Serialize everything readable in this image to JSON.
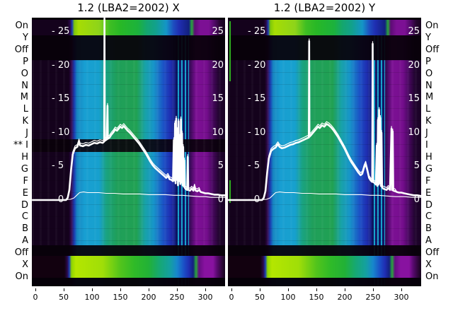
{
  "figure": {
    "kind": "station-test spectrogram with overlaid signal curves",
    "background": "#ffffff"
  },
  "row_labels_left": [
    "On",
    "Y",
    "Off",
    "P",
    "O",
    "N",
    "M",
    "L",
    "K",
    "J",
    "** I",
    "H",
    "G",
    "F",
    "E",
    "D",
    "C",
    "B",
    "A",
    "Off",
    "X",
    "On"
  ],
  "row_labels_right": [
    "On",
    "Y",
    "Off",
    "P",
    "O",
    "N",
    "M",
    "L",
    "K",
    "J",
    "I",
    "H",
    "G",
    "F",
    "E",
    "D",
    "C",
    "B",
    "A",
    "Off",
    "X",
    "On"
  ],
  "palette": {
    "curve": "#ffffff",
    "dark_row": "#0d0112",
    "cyan": "#189fd2",
    "teal": "#1aa382",
    "green": "#21a153",
    "yellow_green": "#a6dc04",
    "yellow_green_bright": "#b4e600",
    "blue": "#1f2eb2",
    "purple": "#7c1094",
    "stripe_dark": "#0e1464",
    "stripe_cyan": "#17a3cc",
    "text": "#000000"
  },
  "chart_data": {
    "type": "heatmap",
    "subtype": "spectrogram panels with white line overlays",
    "x_ticks": [
      0,
      50,
      100,
      150,
      200,
      250,
      300
    ],
    "x_range": [
      0,
      335
    ],
    "y_tick_values": [
      25,
      20,
      15,
      10,
      5,
      0
    ],
    "y_range": [
      0,
      27
    ],
    "grid": false,
    "legend": "none",
    "flagged_row": "** I (left axis of panel X)",
    "panels": [
      {
        "id": "X",
        "title": "1.2 (LBA2=2002) X",
        "has_dark_I_band": true,
        "curves": {
          "main": [
            [
              -6,
              0
            ],
            [
              54,
              0
            ],
            [
              57,
              0.3
            ],
            [
              60,
              1.5
            ],
            [
              63,
              4.5
            ],
            [
              66,
              6.8
            ],
            [
              70,
              7.7
            ],
            [
              74,
              7.9
            ],
            [
              77,
              8.7
            ],
            [
              79,
              8.1
            ],
            [
              84,
              8
            ],
            [
              89,
              8.2
            ],
            [
              94,
              8.1
            ],
            [
              99,
              8.3
            ],
            [
              104,
              8.5
            ],
            [
              109,
              8.4
            ],
            [
              114,
              8.6
            ],
            [
              119,
              8.5
            ],
            [
              121.5,
              8.7
            ],
            [
              122,
              27
            ],
            [
              122.6,
              8.8
            ],
            [
              126,
              9
            ],
            [
              127.4,
              14
            ],
            [
              128,
              9.1
            ],
            [
              131,
              9.3
            ],
            [
              134,
              9.7
            ],
            [
              138,
              10.1
            ],
            [
              141,
              10.5
            ],
            [
              144,
              10.3
            ],
            [
              147,
              10.6
            ],
            [
              150,
              10.9
            ],
            [
              153,
              10.7
            ],
            [
              156,
              11
            ],
            [
              159,
              10.7
            ],
            [
              163,
              10.3
            ],
            [
              167,
              10
            ],
            [
              171,
              9.6
            ],
            [
              175,
              9.2
            ],
            [
              179,
              8.8
            ],
            [
              183,
              8.4
            ],
            [
              187,
              7.9
            ],
            [
              191,
              7.4
            ],
            [
              195,
              6.9
            ],
            [
              199,
              6.3
            ],
            [
              203,
              5.7
            ],
            [
              207,
              5.2
            ],
            [
              211,
              4.8
            ],
            [
              215,
              4.5
            ],
            [
              219,
              4.2
            ],
            [
              223,
              3.9
            ],
            [
              227,
              3.6
            ],
            [
              231,
              3.3
            ],
            [
              234,
              3.6
            ],
            [
              237,
              3.1
            ],
            [
              240,
              3
            ],
            [
              243,
              2.8
            ],
            [
              244.5,
              8.9
            ],
            [
              245.5,
              2.9
            ],
            [
              246.6,
              11.4
            ],
            [
              247.6,
              2.5
            ],
            [
              248.7,
              12.1
            ],
            [
              249.7,
              3
            ],
            [
              250.8,
              10.4
            ],
            [
              251.8,
              2.2
            ],
            [
              252.9,
              11.7
            ],
            [
              253.9,
              2.8
            ],
            [
              255,
              9.4
            ],
            [
              256,
              2.4
            ],
            [
              257,
              12
            ],
            [
              258,
              2.6
            ],
            [
              259,
              9.9
            ],
            [
              260,
              2.2
            ],
            [
              261,
              7.9
            ],
            [
              262,
              2
            ],
            [
              263,
              5.9
            ],
            [
              264,
              1.8
            ],
            [
              266,
              1.6
            ],
            [
              268,
              1.5
            ],
            [
              269,
              6.4
            ],
            [
              270,
              1.5
            ],
            [
              273,
              1.4
            ],
            [
              276,
              1.7
            ],
            [
              279,
              1.4
            ],
            [
              281,
              2
            ],
            [
              283,
              1.4
            ],
            [
              286,
              1.3
            ],
            [
              289,
              1.5
            ],
            [
              292,
              1.2
            ],
            [
              296,
              1.1
            ],
            [
              300,
              1
            ],
            [
              305,
              1
            ],
            [
              310,
              0.9
            ],
            [
              316,
              0.8
            ],
            [
              322,
              0.8
            ],
            [
              328,
              0.7
            ],
            [
              335,
              0.7
            ]
          ],
          "baseline": [
            [
              -6,
              0
            ],
            [
              45,
              0
            ],
            [
              62,
              0.1
            ],
            [
              68,
              0.3
            ],
            [
              73,
              0.7
            ],
            [
              78,
              1.1
            ],
            [
              85,
              1.2
            ],
            [
              92,
              1.1
            ],
            [
              100,
              1.1
            ],
            [
              112,
              1.1
            ],
            [
              125,
              1
            ],
            [
              140,
              1
            ],
            [
              155,
              0.9
            ],
            [
              170,
              0.9
            ],
            [
              185,
              0.9
            ],
            [
              200,
              0.8
            ],
            [
              215,
              0.8
            ],
            [
              230,
              0.8
            ],
            [
              245,
              0.7
            ],
            [
              260,
              0.7
            ],
            [
              275,
              0.6
            ],
            [
              290,
              0.5
            ],
            [
              300,
              0.5
            ],
            [
              310,
              0.4
            ],
            [
              320,
              0.4
            ],
            [
              335,
              0.4
            ]
          ]
        }
      },
      {
        "id": "Y",
        "title": "1.2 (LBA2=2002) Y",
        "has_dark_I_band": false,
        "curves": {
          "main": [
            [
              -6,
              0
            ],
            [
              54,
              0
            ],
            [
              57,
              0.3
            ],
            [
              60,
              1.3
            ],
            [
              63,
              4
            ],
            [
              66,
              6.2
            ],
            [
              70,
              7.3
            ],
            [
              74,
              7.6
            ],
            [
              78,
              7.8
            ],
            [
              82,
              8.3
            ],
            [
              85,
              7.9
            ],
            [
              89,
              7.7
            ],
            [
              94,
              7.8
            ],
            [
              99,
              8
            ],
            [
              104,
              8.2
            ],
            [
              109,
              8.3
            ],
            [
              114,
              8.5
            ],
            [
              119,
              8.6
            ],
            [
              124,
              8.8
            ],
            [
              129,
              9
            ],
            [
              134,
              9.2
            ],
            [
              136.6,
              9.3
            ],
            [
              137.2,
              23.6
            ],
            [
              137.8,
              9.4
            ],
            [
              141,
              9.7
            ],
            [
              145,
              10.1
            ],
            [
              149,
              10.5
            ],
            [
              153,
              10.9
            ],
            [
              156,
              10.7
            ],
            [
              160,
              11.1
            ],
            [
              164,
              10.9
            ],
            [
              168,
              11.3
            ],
            [
              172,
              11.1
            ],
            [
              176,
              10.8
            ],
            [
              180,
              10.4
            ],
            [
              184,
              9.9
            ],
            [
              188,
              9.4
            ],
            [
              192,
              8.8
            ],
            [
              196,
              8.2
            ],
            [
              200,
              7.6
            ],
            [
              204,
              6.9
            ],
            [
              208,
              6.2
            ],
            [
              212,
              5.6
            ],
            [
              216,
              5.1
            ],
            [
              220,
              4.6
            ],
            [
              224,
              4.1
            ],
            [
              228,
              3.7
            ],
            [
              231,
              3.9
            ],
            [
              234,
              4.8
            ],
            [
              237,
              5.4
            ],
            [
              240,
              4.4
            ],
            [
              243,
              3.3
            ],
            [
              246,
              2.9
            ],
            [
              248.5,
              2.7
            ],
            [
              249.4,
              23.2
            ],
            [
              250.3,
              2.7
            ],
            [
              253,
              2.5
            ],
            [
              255,
              2.3
            ],
            [
              256.6,
              8.1
            ],
            [
              257.6,
              2.1
            ],
            [
              258.7,
              11.9
            ],
            [
              259.7,
              2.3
            ],
            [
              260.8,
              13.4
            ],
            [
              261.8,
              2.5
            ],
            [
              262.9,
              12.2
            ],
            [
              263.9,
              2.1
            ],
            [
              265,
              10
            ],
            [
              266,
              1.9
            ],
            [
              268,
              1.7
            ],
            [
              271,
              1.6
            ],
            [
              274,
              1.5
            ],
            [
              277,
              1.8
            ],
            [
              280,
              1.5
            ],
            [
              282.6,
              10.6
            ],
            [
              283.6,
              1.5
            ],
            [
              284.7,
              10.2
            ],
            [
              285.7,
              1.4
            ],
            [
              289,
              1.3
            ],
            [
              292,
              1.2
            ],
            [
              296,
              1.1
            ],
            [
              300,
              1.1
            ],
            [
              305,
              1
            ],
            [
              310,
              0.9
            ],
            [
              316,
              0.8
            ],
            [
              322,
              0.7
            ],
            [
              328,
              0.7
            ],
            [
              335,
              0.6
            ]
          ],
          "baseline": [
            [
              -6,
              0
            ],
            [
              45,
              0
            ],
            [
              62,
              0.1
            ],
            [
              68,
              0.3
            ],
            [
              73,
              0.7
            ],
            [
              78,
              1.1
            ],
            [
              85,
              1.2
            ],
            [
              95,
              1.1
            ],
            [
              110,
              1.1
            ],
            [
              125,
              1
            ],
            [
              140,
              1
            ],
            [
              155,
              0.9
            ],
            [
              170,
              0.9
            ],
            [
              185,
              0.9
            ],
            [
              200,
              0.8
            ],
            [
              215,
              0.8
            ],
            [
              230,
              0.8
            ],
            [
              245,
              0.7
            ],
            [
              260,
              0.7
            ],
            [
              275,
              0.6
            ],
            [
              290,
              0.5
            ],
            [
              305,
              0.5
            ],
            [
              320,
              0.4
            ],
            [
              335,
              0.4
            ]
          ]
        }
      }
    ]
  }
}
